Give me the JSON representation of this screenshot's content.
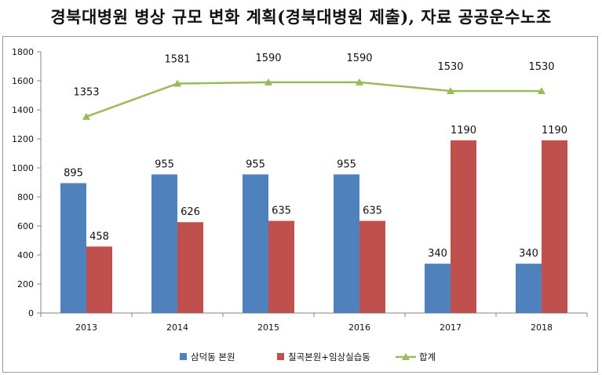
{
  "title": "경북대병원 병상 규모 변화 계획(경북대병원 제출), 자료 공공운수노조",
  "chart_data": {
    "type": "bar",
    "categories": [
      "2013",
      "2014",
      "2015",
      "2016",
      "2017",
      "2018"
    ],
    "series": [
      {
        "name": "삼덕동 본원",
        "type": "bar",
        "color": "#4F81BD",
        "values": [
          895,
          955,
          955,
          955,
          340,
          340
        ]
      },
      {
        "name": "칠곡본원+임상실습동",
        "type": "bar",
        "color": "#C0504D",
        "values": [
          458,
          626,
          635,
          635,
          1190,
          1190
        ]
      },
      {
        "name": "합계",
        "type": "line",
        "color": "#9BBB59",
        "values": [
          1353,
          1581,
          1590,
          1590,
          1530,
          1530
        ]
      }
    ],
    "ylim": [
      0,
      1800
    ],
    "yticks": [
      0,
      200,
      400,
      600,
      800,
      1000,
      1200,
      1400,
      1600,
      1800
    ],
    "grid": false,
    "legend_position": "bottom"
  }
}
